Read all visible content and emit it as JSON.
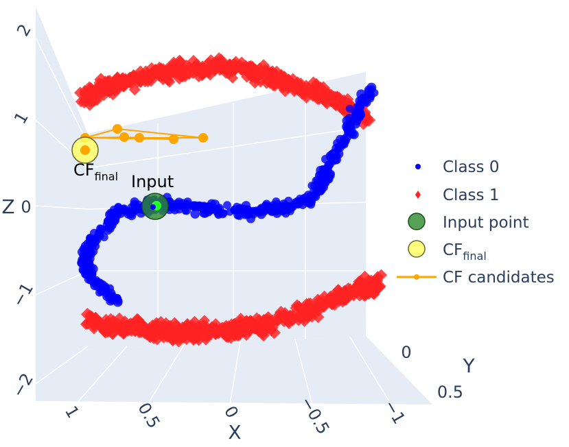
{
  "chart_data": {
    "type": "scatter3d",
    "title": "",
    "axes": {
      "x": {
        "label": "X",
        "ticks": [
          "1",
          "0.5",
          "0",
          "−0.5",
          "−1"
        ],
        "values": [
          1,
          0.5,
          0,
          -0.5,
          -1
        ]
      },
      "y": {
        "label": "Y",
        "ticks": [
          "0",
          "0.5"
        ],
        "values": [
          0,
          0.5
        ]
      },
      "z": {
        "label": "Z",
        "ticks": [
          "2",
          "1",
          "0",
          "−1",
          "−2"
        ],
        "values": [
          2,
          1,
          0,
          -1,
          -2
        ]
      }
    },
    "grid": true,
    "legend_position": "right",
    "colors": {
      "class0": "#0000ff",
      "class1": "#ff2222",
      "input": "#2e8b2e",
      "cf_final": "#ffff66",
      "cf_candidates": "#ffa500"
    },
    "series": [
      {
        "name": "Class 0",
        "marker": "circle",
        "description": "points along the S-curve center band (z between about -1 and 1)"
      },
      {
        "name": "Class 1",
        "marker": "diamond",
        "description": "points on the upper (z≈1.5) and lower (z≈-1.5) arcs of the S-curve"
      },
      {
        "name": "Input point",
        "marker": "circle",
        "points": [
          {
            "x": 0.3,
            "y": 0.1,
            "z": 0.0
          }
        ]
      },
      {
        "name": "CF_final",
        "marker": "circle",
        "points": [
          {
            "x": 0.95,
            "y": 0.1,
            "z": 0.75
          }
        ]
      },
      {
        "name": "CF candidates",
        "marker": "line+circle",
        "points": [
          {
            "x": 0.95,
            "y": 0.1,
            "z": 0.75
          },
          {
            "x": 0.9,
            "y": 0.1,
            "z": 0.85
          },
          {
            "x": 0.75,
            "y": 0.1,
            "z": 0.9
          },
          {
            "x": 0.65,
            "y": 0.1,
            "z": 0.85
          },
          {
            "x": 0.4,
            "y": 0.1,
            "z": 0.82
          },
          {
            "x": 0.2,
            "y": 0.1,
            "z": 0.8
          }
        ]
      }
    ],
    "annotations": [
      {
        "text": "CF",
        "sub": "final"
      },
      {
        "text": "Input",
        "sub": ""
      }
    ],
    "legend": [
      {
        "label": "Class 0",
        "sub": "",
        "symbol": "circle"
      },
      {
        "label": "Class 1",
        "sub": "",
        "symbol": "diamond"
      },
      {
        "label": "Input point",
        "sub": "",
        "symbol": "circle-big"
      },
      {
        "label": "CF",
        "sub": "final",
        "symbol": "circle-big"
      },
      {
        "label": "CF candidates",
        "sub": "",
        "symbol": "line"
      }
    ]
  }
}
